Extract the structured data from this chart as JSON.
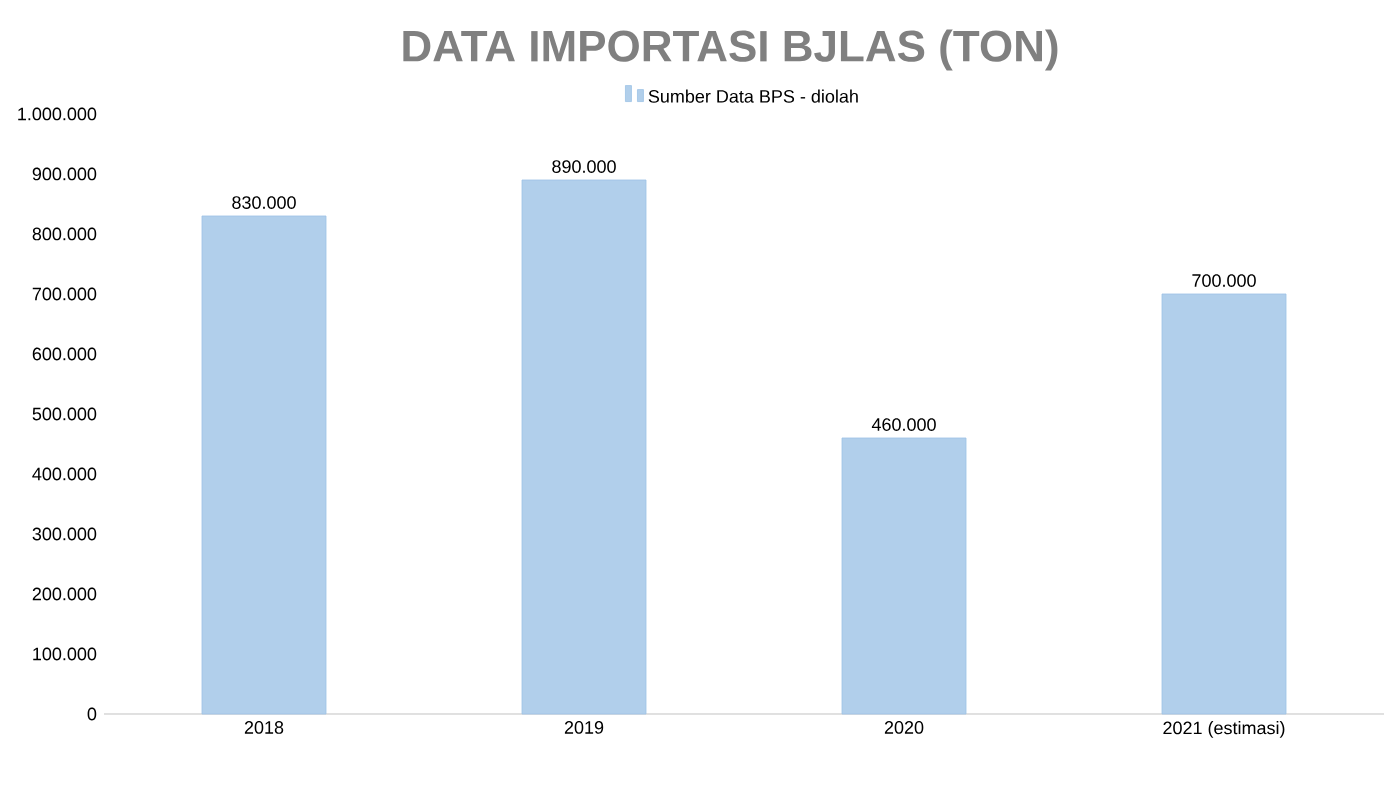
{
  "chart_data": {
    "type": "bar",
    "title": "DATA IMPORTASI BJLAS (TON)",
    "categories": [
      "2018",
      "2019",
      "2020",
      "2021 (estimasi)"
    ],
    "series": [
      {
        "name": "Sumber Data BPS - diolah",
        "color": "#9dc3e6",
        "values": [
          830000,
          890000,
          460000,
          700000
        ],
        "value_labels": [
          "830.000",
          "890.000",
          "460.000",
          "700.000"
        ]
      }
    ],
    "ylim": [
      0,
      1000000
    ],
    "yticks": [
      0,
      {
        "value": 100000,
        "label": "100.000"
      },
      {
        "value": 200000,
        "label": "200.000"
      },
      {
        "value": 300000,
        "label": "300.000"
      },
      {
        "value": 400000,
        "label": "400.000"
      },
      {
        "value": 500000,
        "label": "500.000"
      },
      {
        "value": 600000,
        "label": "600.000"
      },
      {
        "value": 700000,
        "label": "700.000"
      },
      {
        "value": 800000,
        "label": "800.000"
      },
      {
        "value": 900000,
        "label": "900.000"
      },
      {
        "value": 1000000,
        "label": "1.000.000"
      }
    ],
    "legend": "top",
    "grid": false
  }
}
